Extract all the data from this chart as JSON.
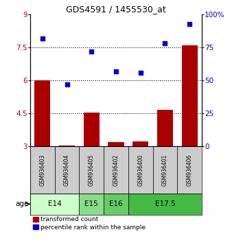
{
  "title": "GDS4591 / 1455530_at",
  "samples": [
    "GSM936403",
    "GSM936404",
    "GSM936405",
    "GSM936402",
    "GSM936400",
    "GSM936401",
    "GSM936406"
  ],
  "bar_values": [
    6.0,
    3.05,
    4.55,
    3.2,
    3.22,
    4.65,
    7.6
  ],
  "scatter_values": [
    82,
    47,
    72,
    57,
    56,
    78,
    93
  ],
  "age_groups": [
    {
      "label": "E14",
      "start": 0,
      "end": 2,
      "color": "#ccffcc"
    },
    {
      "label": "E15",
      "start": 2,
      "end": 3,
      "color": "#88dd88"
    },
    {
      "label": "E16",
      "start": 3,
      "end": 4,
      "color": "#66cc66"
    },
    {
      "label": "E17.5",
      "start": 4,
      "end": 7,
      "color": "#44bb44"
    }
  ],
  "bar_color": "#aa0000",
  "scatter_color": "#0000cc",
  "ylim_left": [
    3,
    9
  ],
  "ylim_right": [
    0,
    100
  ],
  "yticks_left": [
    3,
    4.5,
    6,
    7.5,
    9
  ],
  "yticks_right": [
    0,
    25,
    50,
    75,
    100
  ],
  "ytick_labels_left": [
    "3",
    "4.5",
    "6",
    "7.5",
    "9"
  ],
  "ytick_labels_right": [
    "0",
    "25",
    "50",
    "75",
    "100%"
  ],
  "hlines": [
    4.5,
    6.0,
    7.5
  ],
  "bar_width": 0.65,
  "sample_cell_color": "#cccccc",
  "age_label": "age",
  "legend_labels": [
    "transformed count",
    "percentile rank within the sample"
  ]
}
